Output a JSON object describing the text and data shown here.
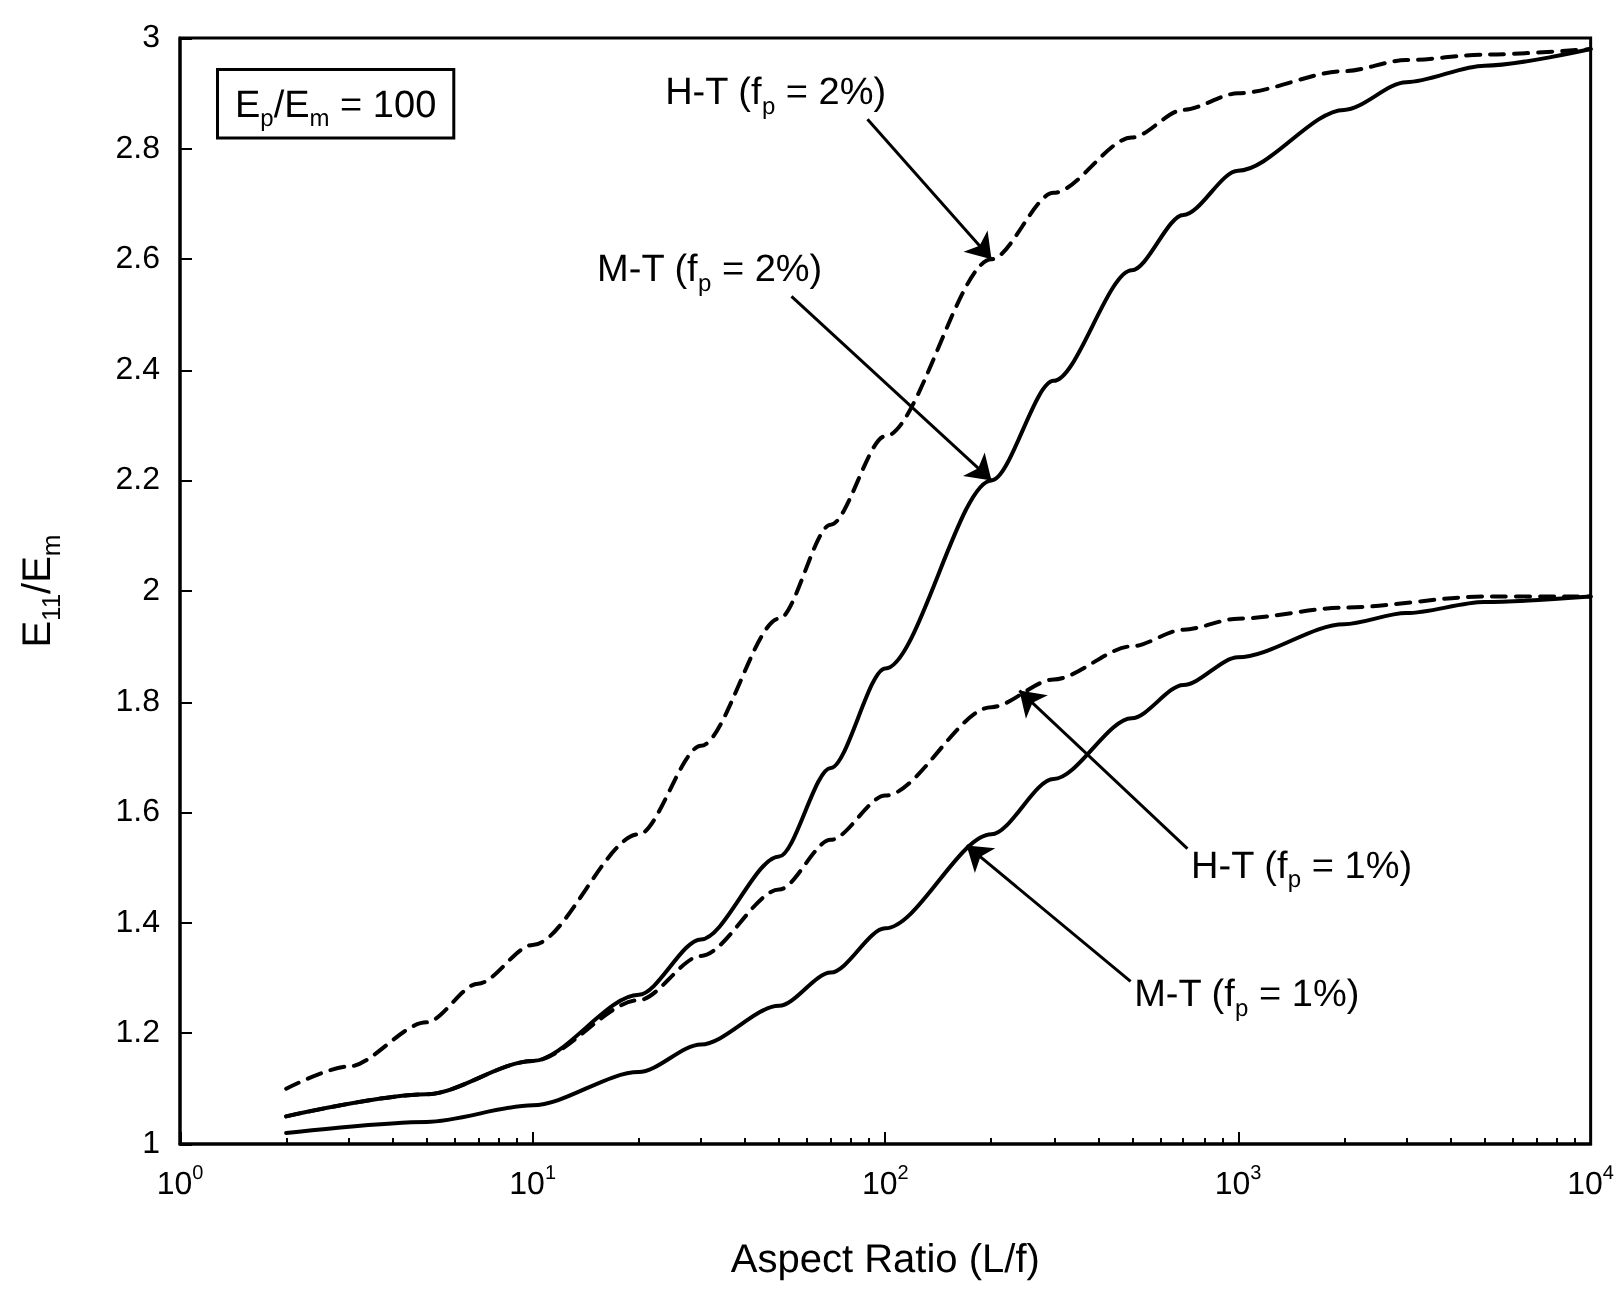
{
  "chart_data": {
    "type": "line",
    "xlabel": "Aspect Ratio (L/f)",
    "ylabel": "E$_{11}$/E$_{m}$",
    "log": "x",
    "grid": false,
    "marker": "none",
    "xlim": [
      1,
      10000
    ],
    "xticks": [
      {
        "value": 1,
        "label": "10$^{0}$"
      },
      {
        "value": 10,
        "label": "10$^{1}$"
      },
      {
        "value": 100,
        "label": "10$^{2}$"
      },
      {
        "value": 1000,
        "label": "10$^{3}$"
      },
      {
        "value": 10000,
        "label": "10$^{4}$"
      }
    ],
    "ylim": [
      1,
      3
    ],
    "yticks": [
      1,
      1.2,
      1.4,
      1.6,
      1.8,
      2,
      2.2,
      2.4,
      2.6,
      2.8,
      3
    ],
    "series": [
      {
        "color": "#000000",
        "line_style": "dashed",
        "x": [
          2,
          3,
          5,
          7,
          10,
          20,
          30,
          50,
          70,
          100,
          200,
          300,
          500,
          700,
          1000,
          2000,
          3000,
          5000,
          10000
        ],
        "values": [
          1.1,
          1.14,
          1.22,
          1.29,
          1.36,
          1.56,
          1.72,
          1.95,
          2.12,
          2.28,
          2.6,
          2.72,
          2.82,
          2.87,
          2.9,
          2.94,
          2.96,
          2.97,
          2.98
        ]
      },
      {
        "color": "#000000",
        "line_style": "solid",
        "x": [
          2,
          5,
          10,
          20,
          30,
          50,
          70,
          100,
          200,
          300,
          500,
          700,
          1000,
          2000,
          3000,
          5000,
          10000
        ],
        "values": [
          1.05,
          1.09,
          1.15,
          1.27,
          1.37,
          1.52,
          1.68,
          1.86,
          2.2,
          2.38,
          2.58,
          2.68,
          2.76,
          2.87,
          2.92,
          2.95,
          2.98
        ]
      },
      {
        "color": "#000000",
        "line_style": "dashed",
        "x": [
          2,
          5,
          10,
          20,
          30,
          50,
          70,
          100,
          200,
          300,
          500,
          700,
          1000,
          2000,
          5000,
          10000
        ],
        "values": [
          1.05,
          1.09,
          1.15,
          1.26,
          1.34,
          1.46,
          1.55,
          1.63,
          1.79,
          1.84,
          1.9,
          1.93,
          1.95,
          1.97,
          1.99,
          1.99
        ]
      },
      {
        "color": "#000000",
        "line_style": "solid",
        "x": [
          2,
          5,
          10,
          20,
          30,
          50,
          70,
          100,
          200,
          300,
          500,
          700,
          1000,
          2000,
          3000,
          5000,
          10000
        ],
        "values": [
          1.02,
          1.04,
          1.07,
          1.13,
          1.18,
          1.25,
          1.31,
          1.39,
          1.56,
          1.66,
          1.77,
          1.83,
          1.88,
          1.94,
          1.96,
          1.98,
          1.99
        ]
      }
    ],
    "annotations": [
      "E$_{p}$/E$_{m}$ = 100",
      {
        "text": "H-T (f$_{p}$ = 2%)",
        "x": 200,
        "y": 2.6
      },
      {
        "text": "M-T (f$_{p}$ = 2%)",
        "x": 200,
        "y": 2.2
      },
      {
        "text": "H-T (f$_{p}$ = 1%)",
        "x": 240,
        "y": 1.82
      },
      {
        "text": "M-T (f$_{p}$ = 1%)",
        "x": 170,
        "y": 1.54
      }
    ]
  }
}
